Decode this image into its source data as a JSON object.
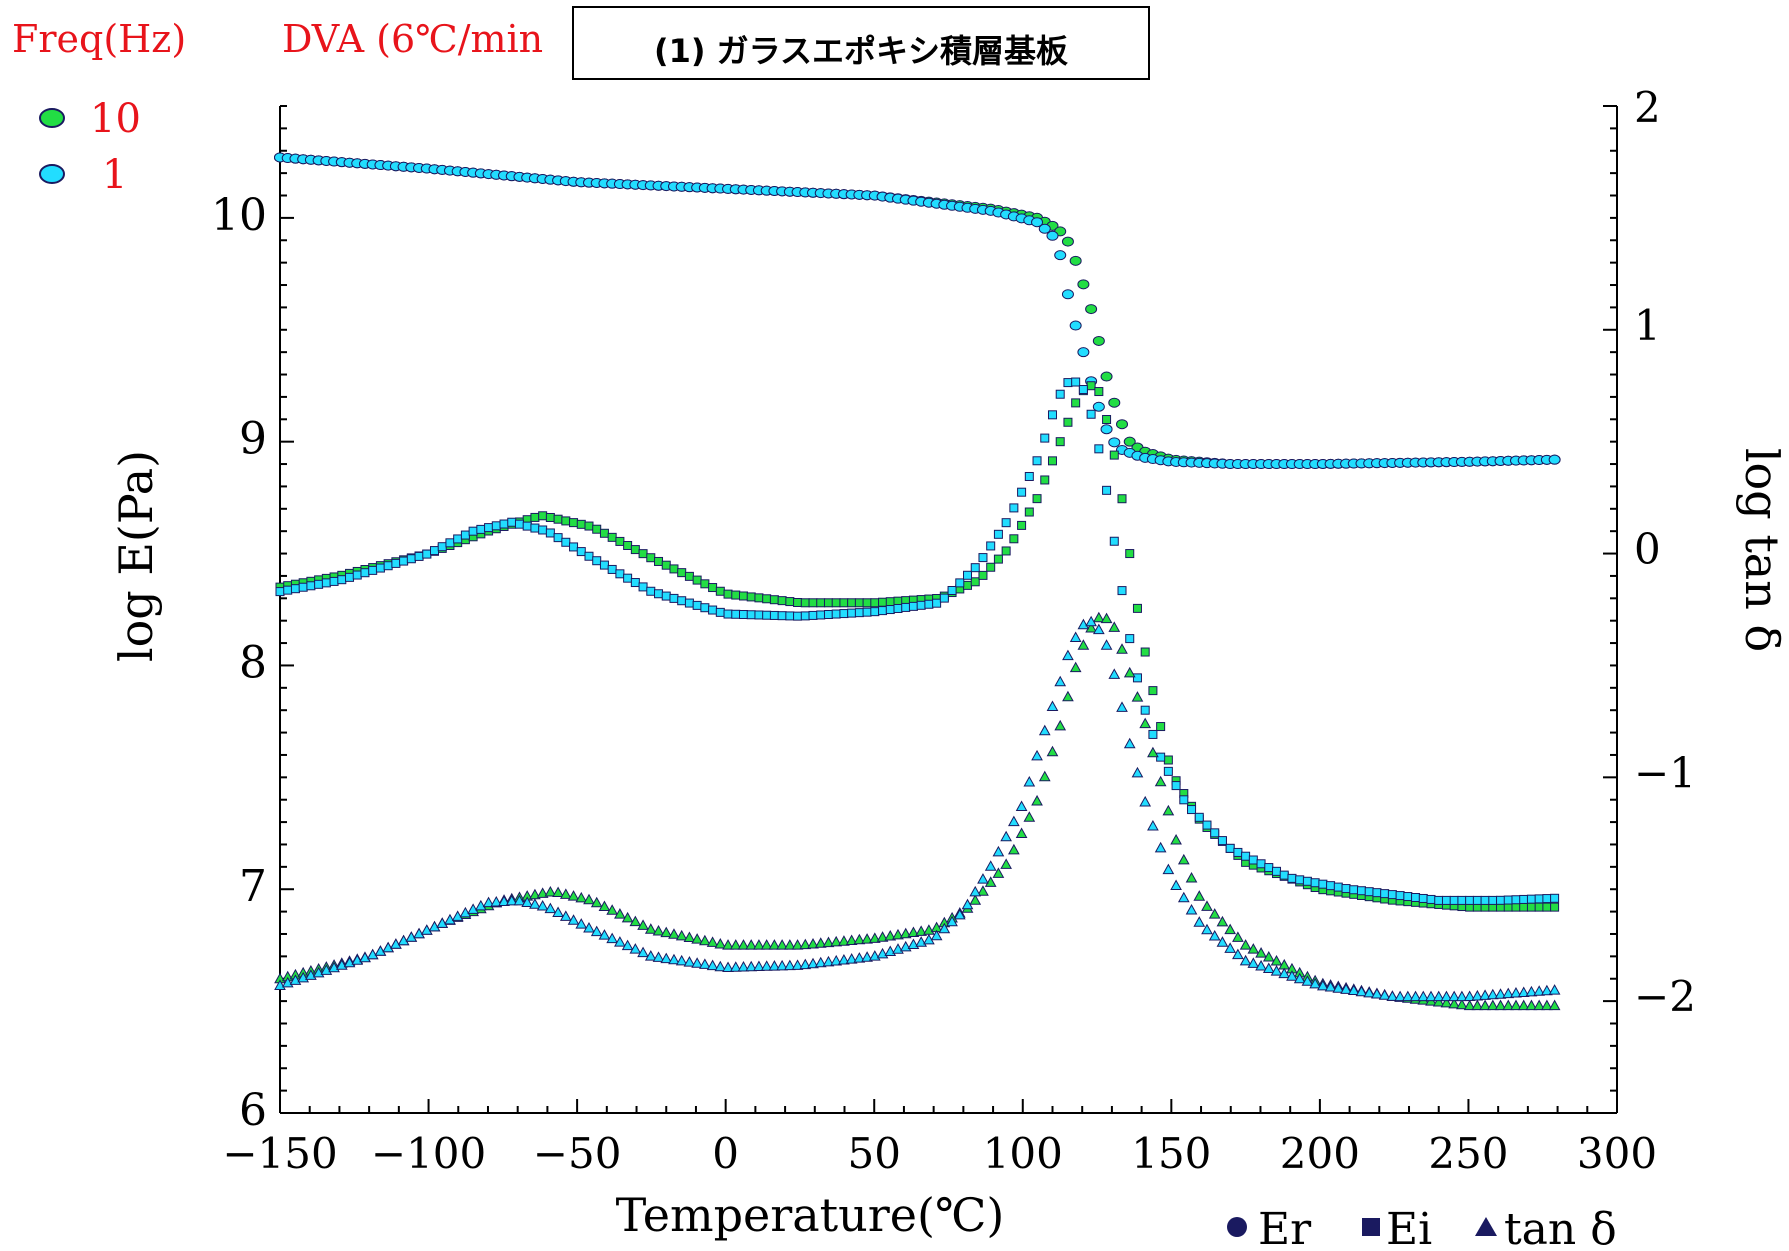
{
  "header": {
    "freq_label": "Freq(Hz)",
    "method_label": "DVA (6℃/min",
    "title": "(1) ガラスエポキシ積層基板"
  },
  "freq_legend": [
    {
      "label": "10",
      "color": "#22dd44"
    },
    {
      "label": "1",
      "color": "#22ddff"
    }
  ],
  "colors": {
    "text_red": "#e8141b",
    "marker_stroke": "#1a1a60",
    "axis": "#000000"
  },
  "chart_data": {
    "type": "scatter",
    "xlabel": "Temperature(℃)",
    "ylabel": "log E(Pa)",
    "y2label": "log tan δ",
    "xlim": [
      -150,
      300
    ],
    "ylim": [
      6,
      10.5
    ],
    "y2lim": [
      -2.5,
      2
    ],
    "x_ticks": [
      "−150",
      "−100",
      "−50",
      "0",
      "50",
      "100",
      "150",
      "200",
      "250",
      "300"
    ],
    "y_ticks": [
      "6",
      "7",
      "8",
      "9",
      "10"
    ],
    "y2_ticks": [
      "−2",
      "−1",
      "0",
      "1",
      "2"
    ],
    "marker_legend": [
      {
        "label": "Er",
        "marker": "circle"
      },
      {
        "label": "Ei",
        "marker": "square"
      },
      {
        "label": "tan δ",
        "marker": "triangle"
      }
    ],
    "series": [
      {
        "name": "Er 10",
        "marker": "circle",
        "color": "#22dd44",
        "axis": "left",
        "points": [
          [
            -150,
            10.27
          ],
          [
            -100,
            10.22
          ],
          [
            -50,
            10.16
          ],
          [
            0,
            10.13
          ],
          [
            50,
            10.1
          ],
          [
            90,
            10.04
          ],
          [
            105,
            10.0
          ],
          [
            112,
            9.95
          ],
          [
            116,
            9.88
          ],
          [
            120,
            9.72
          ],
          [
            124,
            9.55
          ],
          [
            128,
            9.3
          ],
          [
            132,
            9.12
          ],
          [
            136,
            9.0
          ],
          [
            140,
            8.96
          ],
          [
            150,
            8.92
          ],
          [
            170,
            8.9
          ],
          [
            200,
            8.9
          ],
          [
            250,
            8.91
          ],
          [
            280,
            8.92
          ]
        ]
      },
      {
        "name": "Er 1",
        "marker": "circle",
        "color": "#22ddff",
        "axis": "left",
        "points": [
          [
            -150,
            10.27
          ],
          [
            -100,
            10.22
          ],
          [
            -50,
            10.16
          ],
          [
            0,
            10.13
          ],
          [
            50,
            10.1
          ],
          [
            90,
            10.03
          ],
          [
            105,
            9.98
          ],
          [
            110,
            9.92
          ],
          [
            113,
            9.82
          ],
          [
            116,
            9.6
          ],
          [
            120,
            9.42
          ],
          [
            124,
            9.22
          ],
          [
            128,
            9.06
          ],
          [
            132,
            8.97
          ],
          [
            140,
            8.93
          ],
          [
            150,
            8.91
          ],
          [
            170,
            8.9
          ],
          [
            200,
            8.9
          ],
          [
            250,
            8.91
          ],
          [
            280,
            8.92
          ]
        ]
      },
      {
        "name": "Ei 10",
        "marker": "square",
        "color": "#22dd44",
        "axis": "left",
        "points": [
          [
            -150,
            8.35
          ],
          [
            -130,
            8.4
          ],
          [
            -100,
            8.5
          ],
          [
            -80,
            8.6
          ],
          [
            -62,
            8.67
          ],
          [
            -45,
            8.62
          ],
          [
            -25,
            8.48
          ],
          [
            0,
            8.32
          ],
          [
            25,
            8.28
          ],
          [
            50,
            8.28
          ],
          [
            72,
            8.3
          ],
          [
            85,
            8.38
          ],
          [
            95,
            8.52
          ],
          [
            105,
            8.75
          ],
          [
            112,
            8.98
          ],
          [
            118,
            9.18
          ],
          [
            122,
            9.26
          ],
          [
            126,
            9.22
          ],
          [
            130,
            9.0
          ],
          [
            134,
            8.7
          ],
          [
            138,
            8.3
          ],
          [
            142,
            8.0
          ],
          [
            146,
            7.75
          ],
          [
            150,
            7.52
          ],
          [
            160,
            7.3
          ],
          [
            175,
            7.12
          ],
          [
            200,
            7.0
          ],
          [
            225,
            6.95
          ],
          [
            250,
            6.92
          ],
          [
            280,
            6.92
          ]
        ]
      },
      {
        "name": "Ei 1",
        "marker": "square",
        "color": "#22ddff",
        "axis": "left",
        "points": [
          [
            -150,
            8.33
          ],
          [
            -130,
            8.38
          ],
          [
            -100,
            8.5
          ],
          [
            -85,
            8.6
          ],
          [
            -72,
            8.64
          ],
          [
            -60,
            8.6
          ],
          [
            -45,
            8.48
          ],
          [
            -25,
            8.33
          ],
          [
            0,
            8.23
          ],
          [
            25,
            8.22
          ],
          [
            50,
            8.24
          ],
          [
            72,
            8.28
          ],
          [
            85,
            8.45
          ],
          [
            95,
            8.65
          ],
          [
            105,
            8.92
          ],
          [
            112,
            9.2
          ],
          [
            116,
            9.28
          ],
          [
            120,
            9.25
          ],
          [
            124,
            9.08
          ],
          [
            128,
            8.8
          ],
          [
            132,
            8.45
          ],
          [
            136,
            8.12
          ],
          [
            140,
            7.85
          ],
          [
            146,
            7.6
          ],
          [
            155,
            7.38
          ],
          [
            170,
            7.18
          ],
          [
            190,
            7.05
          ],
          [
            210,
            7.0
          ],
          [
            240,
            6.95
          ],
          [
            260,
            6.95
          ],
          [
            280,
            6.96
          ]
        ]
      },
      {
        "name": "tan δ 10",
        "marker": "triangle",
        "color": "#22dd44",
        "axis": "right",
        "points": [
          [
            -150,
            -1.9
          ],
          [
            -120,
            -1.8
          ],
          [
            -95,
            -1.65
          ],
          [
            -75,
            -1.55
          ],
          [
            -58,
            -1.51
          ],
          [
            -45,
            -1.55
          ],
          [
            -25,
            -1.68
          ],
          [
            0,
            -1.75
          ],
          [
            25,
            -1.75
          ],
          [
            50,
            -1.72
          ],
          [
            70,
            -1.68
          ],
          [
            82,
            -1.58
          ],
          [
            95,
            -1.38
          ],
          [
            105,
            -1.1
          ],
          [
            112,
            -0.8
          ],
          [
            118,
            -0.5
          ],
          [
            122,
            -0.35
          ],
          [
            126,
            -0.28
          ],
          [
            130,
            -0.3
          ],
          [
            134,
            -0.45
          ],
          [
            140,
            -0.7
          ],
          [
            146,
            -1.0
          ],
          [
            152,
            -1.3
          ],
          [
            160,
            -1.55
          ],
          [
            175,
            -1.75
          ],
          [
            200,
            -1.92
          ],
          [
            225,
            -1.98
          ],
          [
            250,
            -2.02
          ],
          [
            280,
            -2.02
          ]
        ]
      },
      {
        "name": "tan δ 1",
        "marker": "triangle",
        "color": "#22ddff",
        "axis": "right",
        "points": [
          [
            -150,
            -1.93
          ],
          [
            -120,
            -1.8
          ],
          [
            -95,
            -1.65
          ],
          [
            -80,
            -1.56
          ],
          [
            -70,
            -1.55
          ],
          [
            -60,
            -1.58
          ],
          [
            -45,
            -1.68
          ],
          [
            -25,
            -1.8
          ],
          [
            0,
            -1.85
          ],
          [
            25,
            -1.84
          ],
          [
            50,
            -1.8
          ],
          [
            70,
            -1.72
          ],
          [
            80,
            -1.6
          ],
          [
            90,
            -1.38
          ],
          [
            100,
            -1.12
          ],
          [
            106,
            -0.85
          ],
          [
            112,
            -0.6
          ],
          [
            116,
            -0.42
          ],
          [
            120,
            -0.32
          ],
          [
            124,
            -0.3
          ],
          [
            128,
            -0.4
          ],
          [
            132,
            -0.6
          ],
          [
            136,
            -0.85
          ],
          [
            142,
            -1.15
          ],
          [
            150,
            -1.45
          ],
          [
            160,
            -1.66
          ],
          [
            175,
            -1.82
          ],
          [
            200,
            -1.93
          ],
          [
            225,
            -1.98
          ],
          [
            250,
            -1.98
          ],
          [
            280,
            -1.95
          ]
        ]
      }
    ]
  }
}
